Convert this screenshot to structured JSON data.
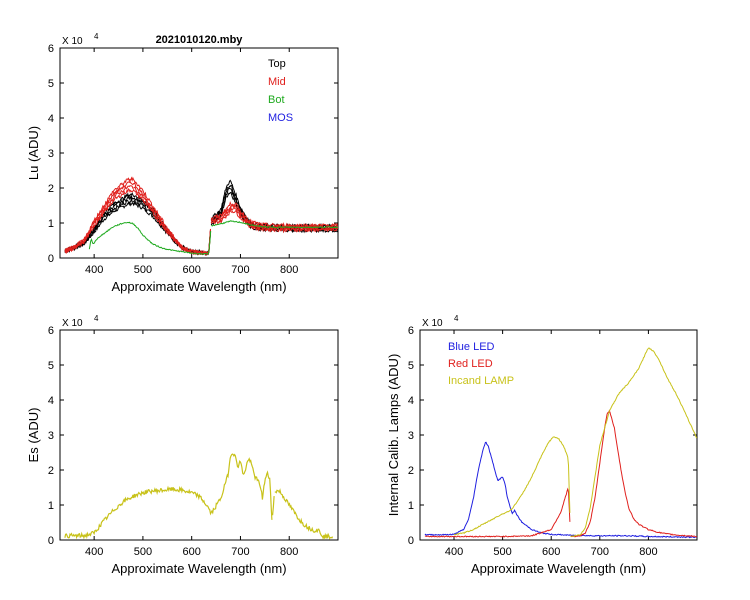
{
  "chart_data": [
    {
      "id": "lu",
      "type": "line",
      "title": "2021010120.mby",
      "xlabel": "Approximate Wavelength (nm)",
      "ylabel": "Lu (ADU)",
      "multiplier": "X 10",
      "exponent": "4",
      "xlim": [
        330,
        900
      ],
      "ylim": [
        0,
        6
      ],
      "xticks": [
        400,
        500,
        600,
        700,
        800
      ],
      "yticks": [
        0,
        1,
        2,
        3,
        4,
        5,
        6
      ],
      "legend": "top-right",
      "series": [
        {
          "name": "Top",
          "color": "#000000",
          "style": "bundle",
          "x": [
            340,
            360,
            380,
            400,
            420,
            440,
            460,
            470,
            480,
            490,
            500,
            520,
            540,
            560,
            580,
            600,
            620,
            635,
            640,
            660,
            670,
            675,
            680,
            690,
            700,
            720,
            740,
            760,
            800,
            850,
            900
          ],
          "y": [
            0.2,
            0.3,
            0.45,
            0.8,
            1.2,
            1.45,
            1.6,
            1.68,
            1.7,
            1.62,
            1.55,
            1.3,
            0.95,
            0.6,
            0.3,
            0.18,
            0.15,
            0.14,
            1.05,
            1.3,
            1.85,
            2.0,
            2.05,
            1.7,
            1.35,
            0.95,
            0.88,
            0.87,
            0.86,
            0.86,
            0.86
          ]
        },
        {
          "name": "Mid",
          "color": "#e0201d",
          "style": "bundle",
          "x": [
            340,
            360,
            380,
            400,
            420,
            440,
            460,
            470,
            480,
            490,
            500,
            520,
            540,
            560,
            580,
            600,
            620,
            635,
            640,
            660,
            670,
            680,
            690,
            700,
            720,
            740,
            760,
            800,
            850,
            900
          ],
          "y": [
            0.2,
            0.3,
            0.5,
            1.0,
            1.4,
            1.8,
            2.0,
            2.1,
            2.1,
            1.95,
            1.8,
            1.4,
            1.0,
            0.62,
            0.3,
            0.18,
            0.15,
            0.14,
            1.05,
            1.15,
            1.3,
            1.45,
            1.45,
            1.25,
            0.98,
            0.9,
            0.88,
            0.87,
            0.87,
            0.87
          ]
        },
        {
          "name": "Bot",
          "color": "#1faa1f",
          "style": "single",
          "x": [
            390,
            394,
            398,
            410,
            420,
            440,
            460,
            470,
            480,
            490,
            500,
            520,
            540,
            560,
            580,
            600,
            620,
            635,
            640,
            660,
            680,
            700,
            720,
            740,
            760,
            800,
            850,
            900
          ],
          "y": [
            0.25,
            0.55,
            0.4,
            0.6,
            0.7,
            0.9,
            1.0,
            1.02,
            0.98,
            0.85,
            0.65,
            0.4,
            0.28,
            0.22,
            0.18,
            0.14,
            0.12,
            0.11,
            0.92,
            0.98,
            1.05,
            1.02,
            0.95,
            0.9,
            0.88,
            0.88,
            0.88,
            0.88
          ]
        },
        {
          "name": "MOS",
          "color": "#1f1fe0",
          "style": "single",
          "x": [],
          "y": []
        }
      ]
    },
    {
      "id": "es",
      "type": "line",
      "title": "",
      "xlabel": "Approximate Wavelength (nm)",
      "ylabel": "Es  (ADU)",
      "multiplier": "X 10",
      "exponent": "4",
      "xlim": [
        330,
        900
      ],
      "ylim": [
        0,
        6
      ],
      "xticks": [
        400,
        500,
        600,
        700,
        800
      ],
      "yticks": [
        0,
        1,
        2,
        3,
        4,
        5,
        6
      ],
      "series": [
        {
          "name": "Es",
          "color": "#c8c21a",
          "style": "noisy",
          "x": [
            340,
            380,
            400,
            420,
            440,
            460,
            480,
            500,
            520,
            540,
            560,
            580,
            600,
            615,
            625,
            635,
            640,
            660,
            675,
            680,
            685,
            690,
            695,
            700,
            705,
            710,
            715,
            720,
            725,
            730,
            735,
            740,
            745,
            750,
            755,
            760,
            765,
            770,
            780,
            790,
            800,
            810,
            820,
            830,
            840,
            850,
            860,
            870,
            880,
            890
          ],
          "y": [
            0.12,
            0.12,
            0.2,
            0.55,
            0.85,
            1.1,
            1.25,
            1.35,
            1.4,
            1.42,
            1.45,
            1.42,
            1.35,
            1.25,
            1.1,
            0.9,
            0.75,
            1.2,
            1.9,
            2.45,
            2.5,
            2.35,
            2.1,
            2.25,
            1.9,
            1.95,
            2.3,
            2.25,
            2.05,
            1.8,
            1.7,
            1.6,
            1.2,
            1.7,
            1.9,
            1.75,
            0.5,
            1.4,
            1.4,
            1.2,
            1.0,
            0.8,
            0.6,
            0.45,
            0.35,
            0.28,
            0.28,
            0.1,
            0.1,
            0.1
          ]
        }
      ]
    },
    {
      "id": "lamps",
      "type": "line",
      "title": "",
      "xlabel": "Approximate Wavelength (nm)",
      "ylabel": "Internal Calib. Lamps  (ADU)",
      "multiplier": "X 10",
      "exponent": "4",
      "xlim": [
        330,
        900
      ],
      "ylim": [
        0,
        6
      ],
      "xticks": [
        400,
        500,
        600,
        700,
        800
      ],
      "yticks": [
        0,
        1,
        2,
        3,
        4,
        5,
        6
      ],
      "legend": "top-left",
      "series": [
        {
          "name": "Blue LED",
          "color": "#1f1fe0",
          "style": "single",
          "x": [
            340,
            380,
            400,
            420,
            430,
            440,
            450,
            460,
            465,
            470,
            480,
            490,
            500,
            505,
            510,
            520,
            525,
            530,
            540,
            560,
            580,
            600,
            650,
            700,
            760,
            800,
            850,
            900
          ],
          "y": [
            0.15,
            0.15,
            0.16,
            0.3,
            0.6,
            1.2,
            2.0,
            2.6,
            2.8,
            2.7,
            2.2,
            1.7,
            1.8,
            1.6,
            1.2,
            0.75,
            0.85,
            0.7,
            0.5,
            0.3,
            0.2,
            0.16,
            0.13,
            0.12,
            0.12,
            0.1,
            0.09,
            0.08
          ]
        },
        {
          "name": "Red LED",
          "color": "#e0201d",
          "style": "single",
          "x": [
            340,
            400,
            500,
            560,
            600,
            620,
            635,
            640,
            650,
            660,
            670,
            680,
            690,
            700,
            710,
            715,
            720,
            730,
            740,
            750,
            760,
            770,
            780,
            800,
            820,
            840,
            860,
            880,
            900
          ],
          "y": [
            0.1,
            0.1,
            0.1,
            0.12,
            0.3,
            0.8,
            1.5,
            0.1,
            0.1,
            0.12,
            0.2,
            0.5,
            1.2,
            2.2,
            3.2,
            3.6,
            3.7,
            3.2,
            2.3,
            1.5,
            0.9,
            0.6,
            0.45,
            0.3,
            0.22,
            0.17,
            0.14,
            0.12,
            0.1
          ]
        },
        {
          "name": "Incand LAMP",
          "color": "#c8c21a",
          "style": "single",
          "x": [
            400,
            420,
            440,
            460,
            480,
            500,
            510,
            520,
            530,
            540,
            560,
            580,
            595,
            605,
            615,
            625,
            635,
            640,
            660,
            670,
            680,
            690,
            700,
            720,
            740,
            760,
            780,
            790,
            800,
            810,
            820,
            840,
            860,
            880,
            900
          ],
          "y": [
            0.15,
            0.2,
            0.3,
            0.45,
            0.6,
            0.75,
            0.8,
            0.9,
            1.1,
            1.3,
            1.8,
            2.4,
            2.8,
            2.95,
            2.9,
            2.7,
            2.35,
            0.1,
            0.15,
            0.35,
            0.9,
            1.8,
            2.7,
            3.7,
            4.2,
            4.5,
            4.9,
            5.2,
            5.5,
            5.4,
            5.2,
            4.6,
            4.1,
            3.5,
            2.9
          ]
        }
      ]
    }
  ]
}
